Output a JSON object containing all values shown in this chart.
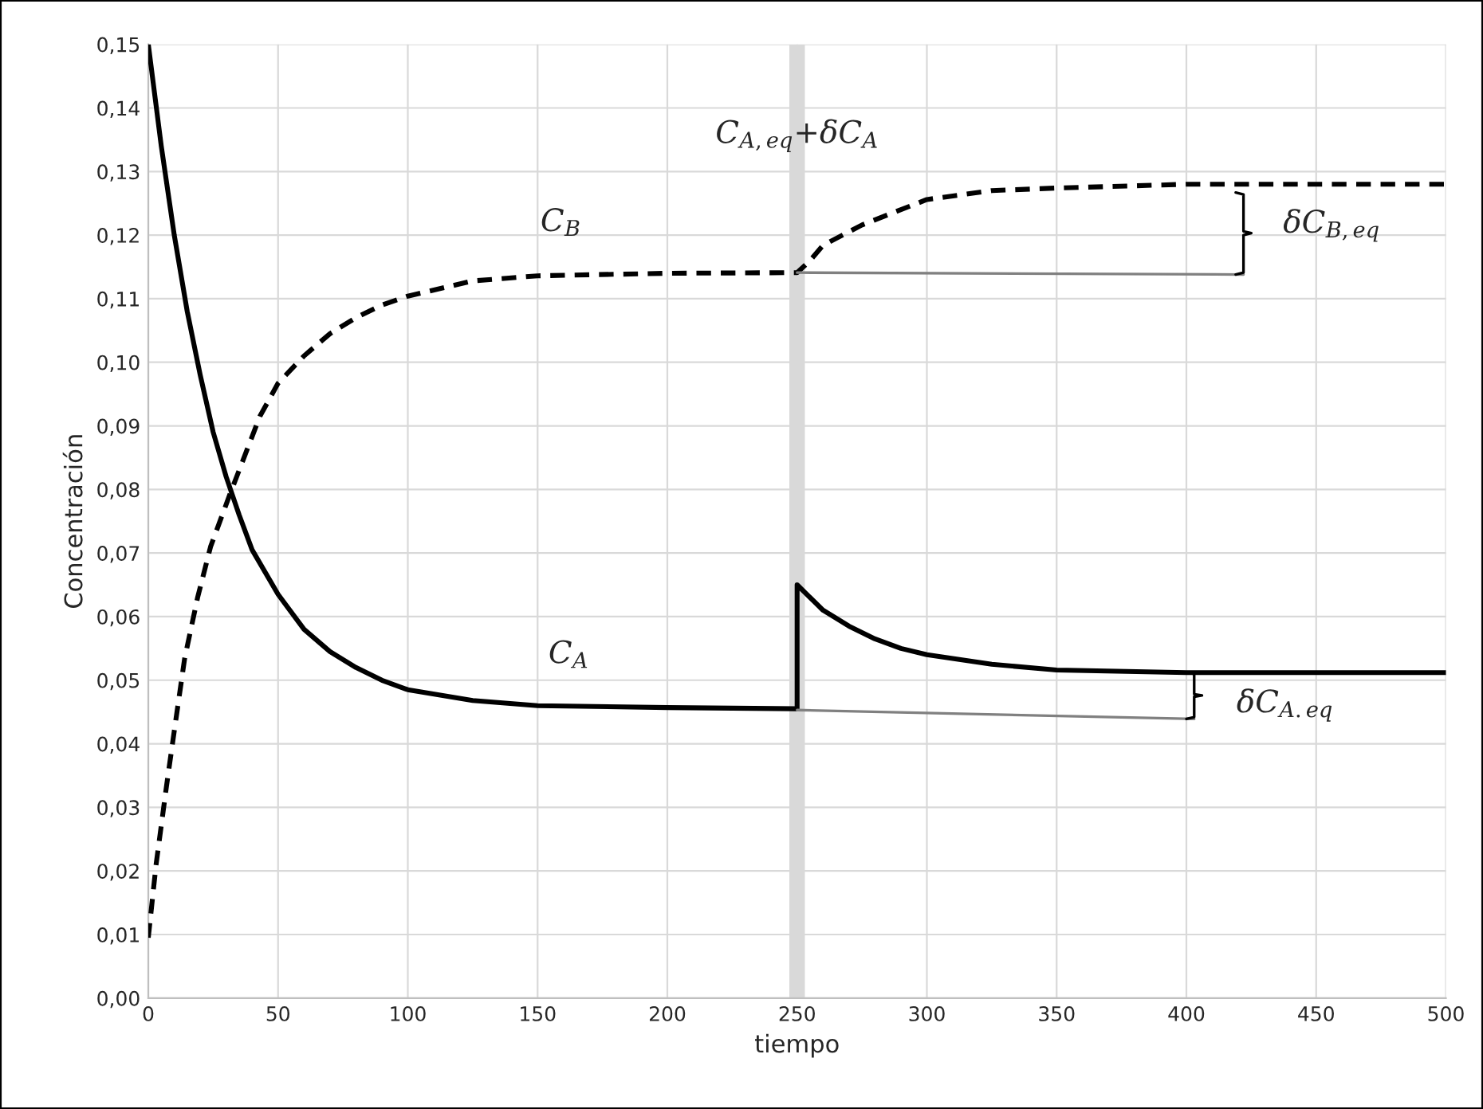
{
  "chart_data": {
    "type": "line",
    "xlabel": "tiempo",
    "ylabel": "Concentración",
    "xlim": [
      0,
      500
    ],
    "xticks": [
      0,
      50,
      100,
      150,
      200,
      250,
      300,
      350,
      400,
      450,
      500
    ],
    "ylim": [
      0,
      0.15
    ],
    "yticks": [
      {
        "value": 0,
        "label": "0,00"
      },
      {
        "value": 0.01,
        "label": "0,01"
      },
      {
        "value": 0.02,
        "label": "0,02"
      },
      {
        "value": 0.03,
        "label": "0,03"
      },
      {
        "value": 0.04,
        "label": "0,04"
      },
      {
        "value": 0.05,
        "label": "0,05"
      },
      {
        "value": 0.06,
        "label": "0,06"
      },
      {
        "value": 0.07,
        "label": "0,07"
      },
      {
        "value": 0.08,
        "label": "0,08"
      },
      {
        "value": 0.09,
        "label": "0,09"
      },
      {
        "value": 0.1,
        "label": "0,10"
      },
      {
        "value": 0.11,
        "label": "0,11"
      },
      {
        "value": 0.12,
        "label": "0,12"
      },
      {
        "value": 0.13,
        "label": "0,13"
      },
      {
        "value": 0.14,
        "label": "0,14"
      },
      {
        "value": 0.15,
        "label": "0,15"
      }
    ],
    "grid": true,
    "marker": "none",
    "series": [
      {
        "color": "#000000",
        "line_style": "solid",
        "x": [
          0,
          5,
          10,
          15,
          20,
          25,
          30,
          35,
          40,
          50,
          60,
          70,
          80,
          90,
          100,
          125,
          150,
          200,
          250,
          250,
          255,
          260,
          270,
          280,
          290,
          300,
          325,
          350,
          400,
          500
        ],
        "values": [
          0.15,
          0.134,
          0.12,
          0.108,
          0.098,
          0.089,
          0.082,
          0.076,
          0.0705,
          0.0635,
          0.058,
          0.0545,
          0.052,
          0.05,
          0.0485,
          0.0468,
          0.046,
          0.0457,
          0.0455,
          0.065,
          0.063,
          0.061,
          0.0585,
          0.0565,
          0.055,
          0.054,
          0.0525,
          0.0516,
          0.0512,
          0.0512
        ]
      },
      {
        "color": "#000000",
        "line_style": "dashed",
        "x": [
          0,
          3,
          7,
          10,
          14,
          19,
          24,
          31.5,
          43,
          50,
          60,
          70,
          80,
          90,
          100,
          125,
          150,
          200,
          250,
          255,
          260,
          275,
          300,
          325,
          350,
          400,
          500
        ],
        "values": [
          0.0095,
          0.021,
          0.0333,
          0.042,
          0.0534,
          0.063,
          0.071,
          0.0793,
          0.0915,
          0.0967,
          0.101,
          0.1045,
          0.107,
          0.109,
          0.1104,
          0.1128,
          0.1136,
          0.114,
          0.1141,
          0.116,
          0.1184,
          0.1216,
          0.1256,
          0.127,
          0.1274,
          0.128,
          0.128
        ]
      },
      {
        "color": "#808080",
        "line_style": "solid",
        "x": [
          250,
          422
        ],
        "values": [
          0.1141,
          0.1138
        ]
      },
      {
        "color": "#808080",
        "line_style": "solid",
        "x": [
          250,
          403
        ],
        "values": [
          0.0453,
          0.0439
        ]
      },
      {
        "color": "#000000",
        "line_style": "solid",
        "x": [
          419,
          422,
          422,
          425,
          422,
          422,
          419
        ],
        "values": [
          0.1267,
          0.1264,
          0.1206,
          0.1203,
          0.12,
          0.1141,
          0.1138
        ]
      },
      {
        "color": "#000000",
        "line_style": "solid",
        "x": [
          400,
          403,
          403,
          406,
          403,
          403,
          400
        ],
        "values": [
          0.0512,
          0.051,
          0.0478,
          0.0476,
          0.0474,
          0.0442,
          0.0439
        ]
      }
    ],
    "bands": [
      {
        "axis": "x",
        "from": 247,
        "to": 253,
        "color": "#d9d9d9"
      }
    ],
    "annotations": [
      "C$_{B}$",
      "C$_{A}$",
      {
        "text": "C$_{A,eq}$+δC$_{A}$",
        "x": 250,
        "y": 0.1356
      },
      "δC$_{B,eq}$",
      "δC$_{A.eq}$"
    ]
  }
}
